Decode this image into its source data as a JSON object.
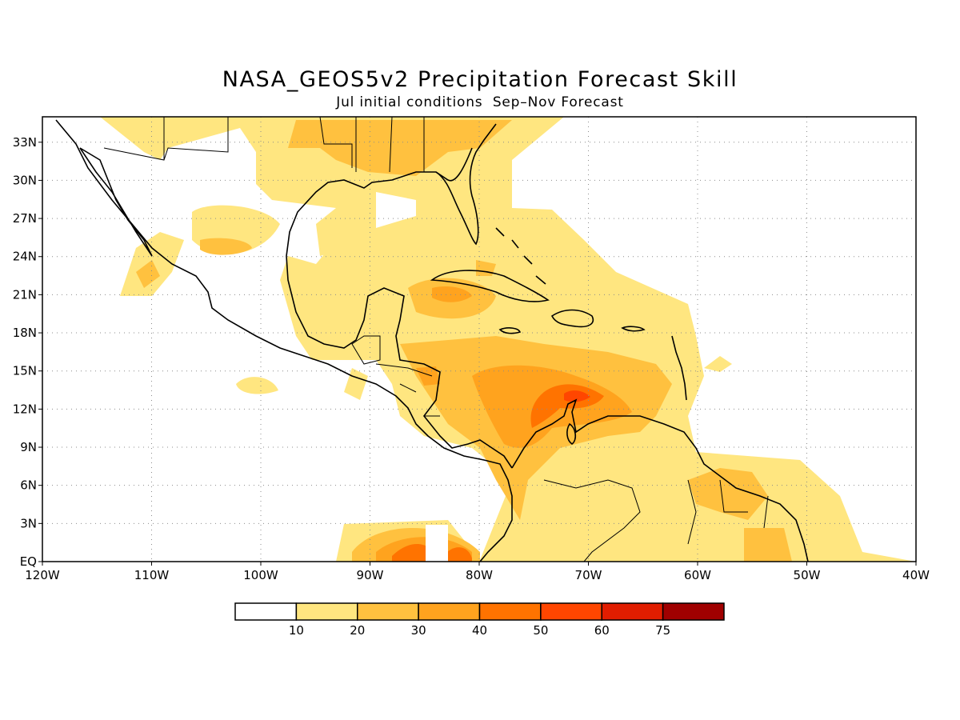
{
  "title": "NASA_GEOS5v2 Precipitation Forecast Skill",
  "subtitle": "Jul initial conditions  Sep–Nov Forecast",
  "map": {
    "lon_range": [
      -120,
      -40
    ],
    "lat_range": [
      0,
      35
    ],
    "lat_labels": [
      "EQ",
      "3N",
      "6N",
      "9N",
      "12N",
      "15N",
      "18N",
      "21N",
      "24N",
      "27N",
      "30N",
      "33N"
    ],
    "lon_labels": [
      "120W",
      "110W",
      "100W",
      "90W",
      "80W",
      "70W",
      "60W",
      "50W",
      "40W"
    ],
    "grid": "dotted"
  },
  "legend": {
    "tick_labels": [
      "10",
      "20",
      "30",
      "40",
      "50",
      "60",
      "75"
    ],
    "colors": [
      "#ffffff",
      "#ffe680",
      "#ffc13f",
      "#ffa31e",
      "#ff7300",
      "#ff4600",
      "#e11d00",
      "#a00000"
    ]
  },
  "shaded_regions": [
    {
      "level": 1,
      "area": "Southern Caribbean / Venezuela coast"
    },
    {
      "level": 2,
      "area": "Central Caribbean"
    },
    {
      "level": 3,
      "area": "North of Colombia"
    },
    {
      "level": 4,
      "area": "Gulf of Venezuela"
    },
    {
      "level": 4,
      "area": "Eastern Pacific near 85W"
    }
  ]
}
